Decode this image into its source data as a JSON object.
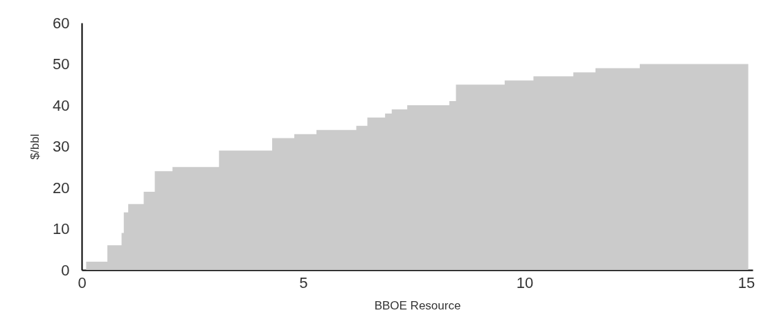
{
  "chart_data": {
    "type": "area",
    "xlabel": "BBOE Resource",
    "ylabel": "$/bbl",
    "x": [
      0.1,
      0.58,
      0.58,
      0.9,
      0.9,
      0.95,
      0.95,
      1.05,
      1.05,
      1.4,
      1.4,
      1.65,
      1.65,
      2.05,
      2.05,
      3.1,
      3.1,
      4.3,
      4.3,
      4.8,
      4.8,
      5.3,
      5.3,
      6.2,
      6.2,
      6.45,
      6.45,
      6.85,
      6.85,
      7.0,
      7.0,
      7.35,
      7.35,
      8.3,
      8.3,
      8.45,
      8.45,
      9.55,
      9.55,
      10.2,
      10.2,
      11.1,
      11.1,
      11.6,
      11.6,
      12.6,
      12.6,
      15.05
    ],
    "series": [
      {
        "color": "#cbcbcb",
        "values": [
          2,
          2,
          6,
          6,
          9,
          9,
          14,
          14,
          16,
          16,
          19,
          19,
          24,
          24,
          25,
          25,
          29,
          29,
          32,
          32,
          33,
          33,
          34,
          34,
          35,
          35,
          37,
          37,
          38,
          38,
          39,
          39,
          40,
          40,
          41,
          41,
          45,
          45,
          46,
          46,
          47,
          47,
          48,
          48,
          49,
          49,
          50,
          50
        ]
      }
    ],
    "xlim": [
      0,
      15.15
    ],
    "xticks": [
      0,
      5,
      10,
      15
    ],
    "ylim": [
      0,
      60
    ],
    "yticks": [
      0,
      10,
      20,
      30,
      40,
      50,
      60
    ],
    "grid": false
  }
}
